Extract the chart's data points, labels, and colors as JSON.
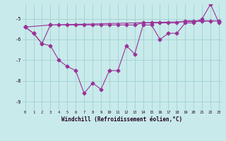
{
  "line1_x": [
    0,
    1,
    2,
    3,
    4,
    5,
    6,
    7,
    8,
    9,
    10,
    11,
    12,
    13,
    14,
    15,
    16,
    17,
    18,
    19,
    20,
    21,
    22,
    23
  ],
  "line1_y": [
    -5.4,
    -5.7,
    -6.2,
    -5.3,
    -5.3,
    -5.3,
    -5.3,
    -5.3,
    -5.3,
    -5.3,
    -5.3,
    -5.3,
    -5.3,
    -5.3,
    -5.2,
    -5.2,
    -5.2,
    -5.2,
    -5.2,
    -5.1,
    -5.1,
    -5.1,
    -5.1,
    -5.1
  ],
  "line2_x": [
    0,
    1,
    2,
    3,
    4,
    5,
    6,
    7,
    8,
    9,
    10,
    11,
    12,
    13,
    14,
    15,
    16,
    17,
    18,
    19,
    20,
    21,
    22,
    23
  ],
  "line2_y": [
    -5.4,
    -5.7,
    -6.2,
    -6.3,
    -7.0,
    -7.3,
    -7.5,
    -8.6,
    -8.1,
    -8.4,
    -7.5,
    -7.5,
    -6.3,
    -6.7,
    -5.3,
    -5.3,
    -6.0,
    -5.7,
    -5.7,
    -5.2,
    -5.2,
    -5.0,
    -4.3,
    -5.2
  ],
  "line3_x": [
    0,
    3,
    23
  ],
  "line3_y": [
    -5.4,
    -5.3,
    -5.1
  ],
  "line_color": "#993399",
  "bg_color": "#c8eaea",
  "grid_color": "#99cccc",
  "xlabel": "Windchill (Refroidissement éolien,°C)",
  "ylim": [
    -9.4,
    -4.3
  ],
  "xlim": [
    -0.3,
    23.3
  ],
  "yticks": [
    -9,
    -8,
    -7,
    -6,
    -5
  ],
  "xticks": [
    0,
    1,
    2,
    3,
    4,
    5,
    6,
    7,
    8,
    9,
    10,
    11,
    12,
    13,
    14,
    15,
    16,
    17,
    18,
    19,
    20,
    21,
    22,
    23
  ]
}
